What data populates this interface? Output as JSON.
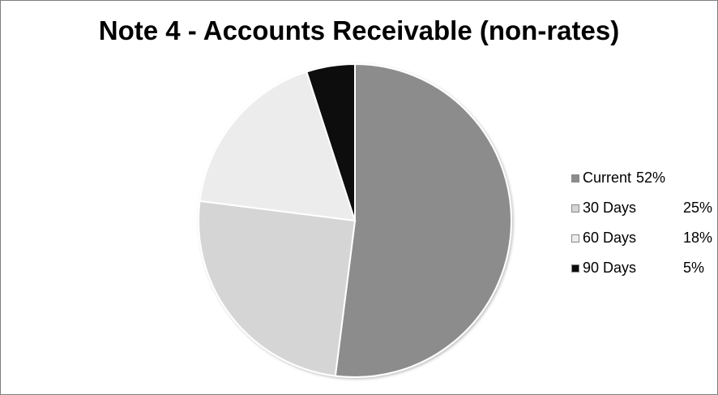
{
  "chart_data": {
    "type": "pie",
    "title": "Note 4 - Accounts Receivable (non-rates)",
    "slices": [
      {
        "label": "Current",
        "value_label": "52%",
        "value": 52,
        "color": "#8c8c8c"
      },
      {
        "label": "30 Days",
        "value_label": "25%",
        "value": 25,
        "color": "#d5d5d5"
      },
      {
        "label": "60 Days",
        "value_label": "18%",
        "value": 18,
        "color": "#ececec"
      },
      {
        "label": "90 Days",
        "value_label": "5%",
        "value": 5,
        "color": "#0d0d0d"
      }
    ],
    "legend_position": "right"
  }
}
